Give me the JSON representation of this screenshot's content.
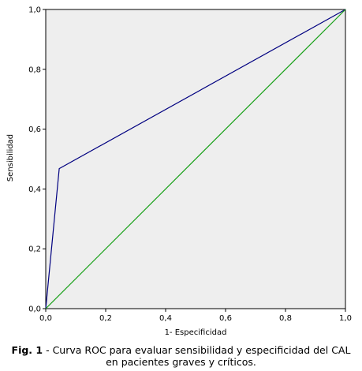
{
  "chart_data": {
    "type": "line",
    "xlabel": "1- Especificidad",
    "ylabel": "Sensibilidad",
    "xlim": [
      0,
      1
    ],
    "ylim": [
      0,
      1
    ],
    "xticks": [
      "0,0",
      "0,2",
      "0,4",
      "0,6",
      "0,8",
      "1,0"
    ],
    "yticks": [
      "0,0",
      "0,2",
      "0,4",
      "0,6",
      "0,8",
      "1,0"
    ],
    "grid": false,
    "series": [
      {
        "color": "#000080",
        "x": [
          0,
          0.045,
          1
        ],
        "y": [
          0,
          0.468,
          1
        ]
      },
      {
        "color": "#16a016",
        "x": [
          0,
          1
        ],
        "y": [
          0,
          1
        ]
      }
    ]
  },
  "caption": {
    "label": "Fig. 1",
    "text": " - Curva ROC para evaluar sensibilidad y especificidad del CAL en pacientes graves y críticos."
  },
  "colors": {
    "plot_background": "#eeeeee",
    "axis": "#000000"
  }
}
